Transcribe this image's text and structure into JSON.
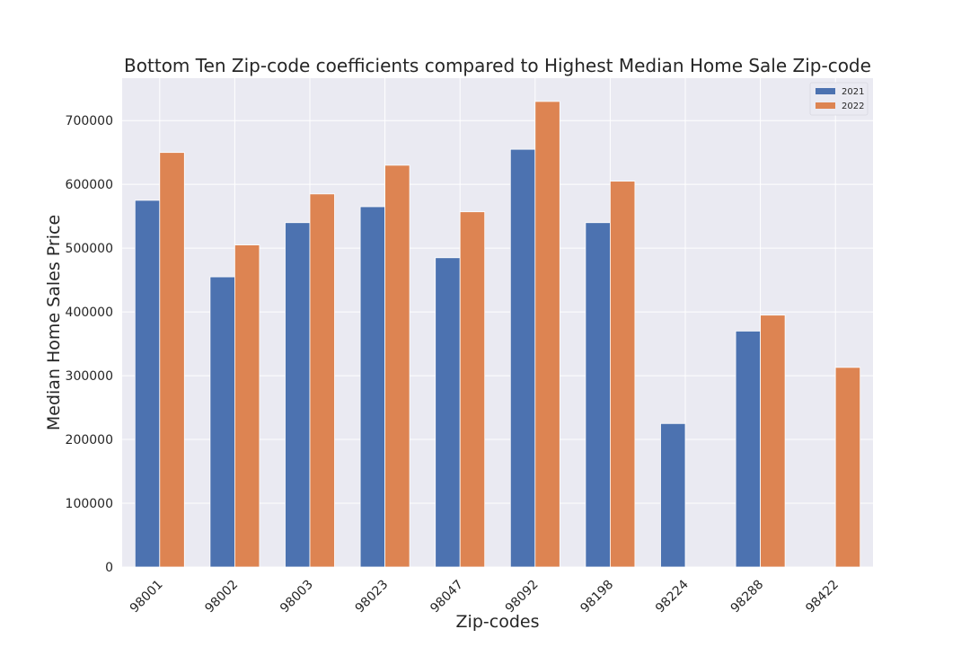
{
  "chart_data": {
    "type": "bar",
    "title": "Bottom Ten Zip-code coefficients compared to Highest Median Home Sale Zip-code",
    "xlabel": "Zip-codes",
    "ylabel": "Median Home Sales Price",
    "categories": [
      "98001",
      "98002",
      "98003",
      "98023",
      "98047",
      "98092",
      "98198",
      "98224",
      "98288",
      "98422"
    ],
    "series": [
      {
        "name": "2021",
        "color": "#4c72b0",
        "values": [
          575000,
          455000,
          540000,
          565000,
          485000,
          655000,
          540000,
          225000,
          370000,
          null
        ]
      },
      {
        "name": "2022",
        "color": "#dd8452",
        "values": [
          650000,
          505000,
          585000,
          630000,
          557000,
          730000,
          605000,
          null,
          395000,
          313000
        ]
      }
    ],
    "ylim": [
      0,
      766500
    ],
    "yticks": [
      0,
      100000,
      200000,
      300000,
      400000,
      500000,
      600000,
      700000
    ],
    "grid": true,
    "legend_position": "top-right",
    "background_color": "#eaeaf2"
  }
}
